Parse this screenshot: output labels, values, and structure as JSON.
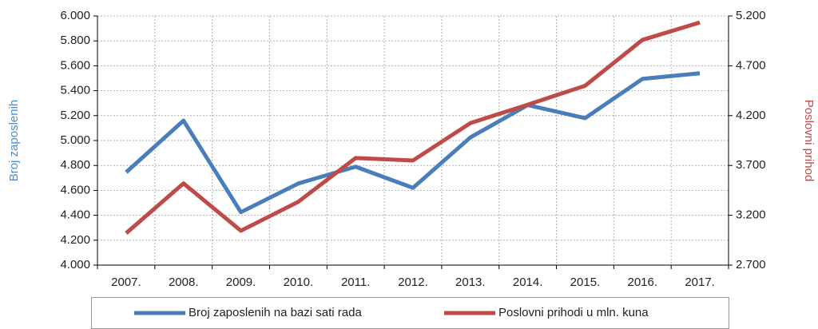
{
  "chart_data": {
    "type": "line",
    "categories": [
      "2007.",
      "2008.",
      "2009.",
      "2010.",
      "2011.",
      "2012.",
      "2013.",
      "2014.",
      "2015.",
      "2016.",
      "2017."
    ],
    "ylabel": "Broj zaposlenih",
    "y2label": "Poslovni prihod",
    "ylim": [
      4000,
      6000
    ],
    "yticks": [
      {
        "value": 4000,
        "label": "4.000"
      },
      {
        "value": 4200,
        "label": "4.200"
      },
      {
        "value": 4400,
        "label": "4.400"
      },
      {
        "value": 4600,
        "label": "4.600"
      },
      {
        "value": 4800,
        "label": "4.800"
      },
      {
        "value": 5000,
        "label": "5.000"
      },
      {
        "value": 5200,
        "label": "5.200"
      },
      {
        "value": 5400,
        "label": "5.400"
      },
      {
        "value": 5600,
        "label": "5.600"
      },
      {
        "value": 5800,
        "label": "5.800"
      },
      {
        "value": 6000,
        "label": "6.000"
      }
    ],
    "y2lim": [
      2700,
      5200
    ],
    "y2ticks": [
      {
        "value": 2700,
        "label": "2.700"
      },
      {
        "value": 3200,
        "label": "3.200"
      },
      {
        "value": 3700,
        "label": "3.700"
      },
      {
        "value": 4200,
        "label": "4.200"
      },
      {
        "value": 4700,
        "label": "4.700"
      },
      {
        "value": 5200,
        "label": "5.200"
      }
    ],
    "grid": true,
    "legend": "bottom",
    "series": [
      {
        "name": "Broj zaposlenih na bazi sati rada",
        "color": "#4a7ebb",
        "values": [
          4745,
          5160,
          4425,
          4655,
          4790,
          4620,
          5025,
          5285,
          5180,
          5495,
          5540
        ]
      },
      {
        "name": "Poslovni prihodi u mln. kuna",
        "color": "#be4b48",
        "axis": "y2",
        "values": [
          3020,
          3520,
          3045,
          3335,
          3775,
          3750,
          4125,
          4310,
          4500,
          4960,
          5135
        ]
      }
    ]
  }
}
